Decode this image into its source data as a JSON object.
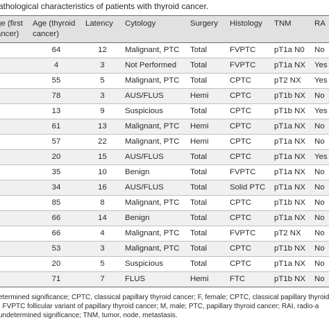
{
  "caption": "athological characteristics of patients with thyroid cancer.",
  "headers": {
    "h0a": "ge (first",
    "h0b": "ancer)",
    "h1a": "Age (thyroid",
    "h1b": "cancer)",
    "h2": "Latency",
    "h3": "Cytology",
    "h4": "Surgery",
    "h5": "Histology",
    "h6": "TNM",
    "h7": "RA"
  },
  "rows": [
    {
      "age": "64",
      "latency": "12",
      "cytology": "Malignant, PTC",
      "surgery": "Total",
      "histology": "FVPTC",
      "tnm": "pT1a N0",
      "rai": "No"
    },
    {
      "age": "4",
      "latency": "3",
      "cytology": "Not Performed",
      "surgery": "Total",
      "histology": "FVPTC",
      "tnm": "pT1a NX",
      "rai": "Yes"
    },
    {
      "age": "55",
      "latency": "5",
      "cytology": "Malignant, PTC",
      "surgery": "Total",
      "histology": "CPTC",
      "tnm": "pT2 NX",
      "rai": "Yes"
    },
    {
      "age": "78",
      "latency": "3",
      "cytology": "AUS/FLUS",
      "surgery": "Hemi",
      "histology": "CPTC",
      "tnm": "pT1b NX",
      "rai": "No"
    },
    {
      "age": "13",
      "latency": "9",
      "cytology": "Suspicious",
      "surgery": "Total",
      "histology": "CPTC",
      "tnm": "pT1b NX",
      "rai": "Yes"
    },
    {
      "age": "61",
      "latency": "13",
      "cytology": "Malignant, PTC",
      "surgery": "Hemi",
      "histology": "CPTC",
      "tnm": "pT1a NX",
      "rai": "No"
    },
    {
      "age": "57",
      "latency": "22",
      "cytology": "Malignant, PTC",
      "surgery": "Hemi",
      "histology": "CPTC",
      "tnm": "pT1a NX",
      "rai": "No"
    },
    {
      "age": "20",
      "latency": "15",
      "cytology": "AUS/FLUS",
      "surgery": "Total",
      "histology": "CPTC",
      "tnm": "pT1a NX",
      "rai": "Yes"
    },
    {
      "age": "35",
      "latency": "10",
      "cytology": "Benign",
      "surgery": "Total",
      "histology": "FVPTC",
      "tnm": "pT1a NX",
      "rai": "No"
    },
    {
      "age": "34",
      "latency": "16",
      "cytology": "AUS/FLUS",
      "surgery": "Total",
      "histology": "Solid PTC",
      "tnm": "pT1a NX",
      "rai": "No"
    },
    {
      "age": "85",
      "latency": "8",
      "cytology": "Malignant, PTC",
      "surgery": "Total",
      "histology": "CPTC",
      "tnm": "pT1b NX",
      "rai": "No"
    },
    {
      "age": "66",
      "latency": "14",
      "cytology": "Benign",
      "surgery": "Total",
      "histology": "CPTC",
      "tnm": "pT1a NX",
      "rai": "No"
    },
    {
      "age": "66",
      "latency": "4",
      "cytology": "Malignant, PTC",
      "surgery": "Total",
      "histology": "FVPTC",
      "tnm": "pT2 NX",
      "rai": "No"
    },
    {
      "age": "53",
      "latency": "3",
      "cytology": "Malignant, PTC",
      "surgery": "Total",
      "histology": "CPTC",
      "tnm": "pT1b NX",
      "rai": "No"
    },
    {
      "age": "20",
      "latency": "5",
      "cytology": "Suspicious",
      "surgery": "Total",
      "histology": "CPTC",
      "tnm": "pT1a NX",
      "rai": "No"
    },
    {
      "age": "71",
      "latency": "7",
      "cytology": "FLUS",
      "surgery": "Hemi",
      "histology": "FTC",
      "tnm": "pT1b NX",
      "rai": "No"
    }
  ],
  "footnote": [
    "etermined significance; CPTC, classical papillary thyroid cancer; F, female; CPTC, classical papillary thyroid cancer;",
    "; FVPTC follicular variant of papillary thyroid cancer; M, male; PTC, papillary thyroid cancer; RAI, radio-a",
    "undetermined significance; TNM, tumor, node, metastasis."
  ]
}
